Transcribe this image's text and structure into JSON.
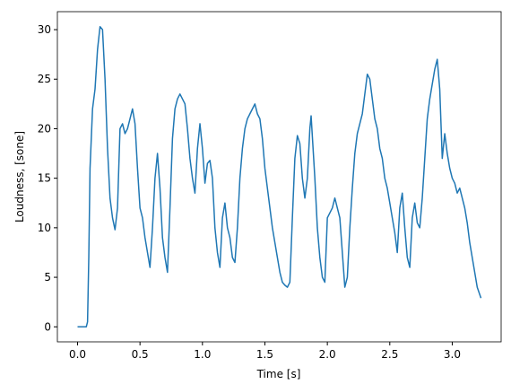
{
  "chart_data": {
    "type": "line",
    "x_label": "Time [s]",
    "y_label": "Loudness, [sone]",
    "color": "#1f77b4",
    "x": [
      0,
      0.07,
      0.08,
      0.09,
      0.1,
      0.12,
      0.14,
      0.16,
      0.18,
      0.2,
      0.22,
      0.24,
      0.26,
      0.28,
      0.3,
      0.32,
      0.34,
      0.36,
      0.38,
      0.4,
      0.42,
      0.44,
      0.46,
      0.48,
      0.5,
      0.52,
      0.54,
      0.56,
      0.58,
      0.6,
      0.62,
      0.64,
      0.66,
      0.68,
      0.7,
      0.72,
      0.74,
      0.76,
      0.78,
      0.8,
      0.82,
      0.84,
      0.86,
      0.88,
      0.9,
      0.92,
      0.94,
      0.96,
      0.98,
      1.0,
      1.02,
      1.04,
      1.06,
      1.08,
      1.1,
      1.12,
      1.14,
      1.16,
      1.18,
      1.2,
      1.22,
      1.24,
      1.26,
      1.28,
      1.3,
      1.32,
      1.34,
      1.36,
      1.38,
      1.4,
      1.42,
      1.44,
      1.46,
      1.48,
      1.5,
      1.52,
      1.54,
      1.56,
      1.58,
      1.6,
      1.62,
      1.64,
      1.66,
      1.68,
      1.7,
      1.72,
      1.74,
      1.76,
      1.78,
      1.8,
      1.82,
      1.84,
      1.86,
      1.87,
      1.9,
      1.92,
      1.94,
      1.96,
      1.98,
      2.0,
      2.02,
      2.04,
      2.06,
      2.08,
      2.1,
      2.12,
      2.14,
      2.16,
      2.18,
      2.2,
      2.22,
      2.24,
      2.26,
      2.28,
      2.3,
      2.32,
      2.34,
      2.36,
      2.38,
      2.4,
      2.42,
      2.44,
      2.46,
      2.48,
      2.5,
      2.52,
      2.54,
      2.56,
      2.58,
      2.6,
      2.62,
      2.64,
      2.66,
      2.68,
      2.7,
      2.72,
      2.74,
      2.76,
      2.78,
      2.8,
      2.82,
      2.84,
      2.86,
      2.88,
      2.9,
      2.92,
      2.94,
      2.96,
      2.98,
      3.0,
      3.02,
      3.04,
      3.06,
      3.08,
      3.1,
      3.12,
      3.14,
      3.16,
      3.18,
      3.2,
      3.23
    ],
    "values": [
      0,
      0,
      0.5,
      7,
      16,
      22,
      24,
      28,
      30.3,
      30,
      25,
      18,
      13,
      11,
      9.8,
      12,
      20,
      20.5,
      19.5,
      20,
      21,
      22,
      20.5,
      16,
      12,
      11,
      9,
      7.5,
      6,
      10,
      15,
      17.5,
      14,
      9,
      7,
      5.5,
      12,
      19,
      22,
      23,
      23.5,
      23,
      22.5,
      20,
      17,
      15,
      13.5,
      18,
      20.5,
      18,
      14.5,
      16.5,
      16.8,
      15,
      10,
      7.5,
      6,
      11,
      12.5,
      10,
      9,
      7,
      6.5,
      10,
      15,
      18,
      20,
      21,
      21.5,
      22,
      22.5,
      21.5,
      21,
      19,
      16,
      14,
      12,
      10,
      8.5,
      7,
      5.5,
      4.5,
      4.2,
      4,
      4.5,
      11,
      17,
      19.3,
      18.5,
      15,
      13,
      15,
      20,
      21.3,
      15,
      10,
      7,
      5,
      4.5,
      11,
      11.5,
      12,
      13,
      12,
      11,
      7.5,
      4,
      5,
      10,
      14,
      17.5,
      19.5,
      20.5,
      21.5,
      23.5,
      25.5,
      25,
      23,
      21,
      20,
      18,
      17,
      15,
      14,
      12.5,
      11,
      9.5,
      7.5,
      12,
      13.5,
      10,
      7,
      6,
      11,
      12.5,
      10.5,
      10,
      13,
      17,
      21,
      23,
      24.5,
      26,
      27,
      24,
      17,
      19.5,
      17.5,
      16,
      15,
      14.5,
      13.5,
      14,
      13,
      12,
      10.5,
      8.5,
      7,
      5.5,
      4,
      2.9
    ],
    "xlim": [
      -0.1615,
      3.3915
    ],
    "xticks": [
      {
        "value": 0,
        "label": "0.0"
      },
      0.5,
      {
        "value": 1,
        "label": "1.0"
      },
      1.5,
      {
        "value": 2,
        "label": "2.0"
      },
      2.5,
      {
        "value": 3,
        "label": "3.0"
      }
    ],
    "ylim": [
      -1.515,
      31.815
    ],
    "yticks": [
      0,
      5,
      10,
      15,
      20,
      25,
      30
    ],
    "grid": false
  }
}
